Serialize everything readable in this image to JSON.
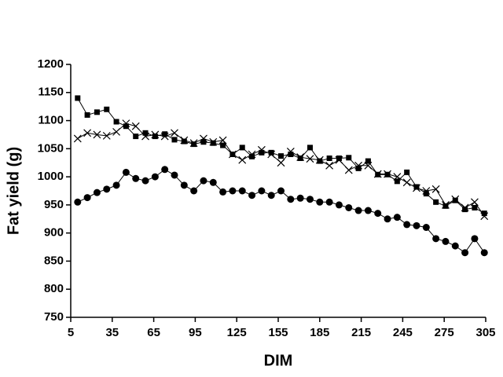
{
  "chart_data": {
    "type": "line",
    "x": [
      10,
      17,
      24,
      31,
      38,
      45,
      52,
      59,
      66,
      73,
      80,
      87,
      94,
      101,
      108,
      115,
      122,
      129,
      136,
      143,
      150,
      157,
      164,
      171,
      178,
      185,
      192,
      199,
      206,
      213,
      220,
      227,
      234,
      241,
      248,
      255,
      262,
      269,
      276,
      283,
      290,
      297,
      304
    ],
    "series": [
      {
        "marker": "square",
        "color": "#000000",
        "values": [
          1140,
          1110,
          1115,
          1120,
          1098,
          1090,
          1072,
          1078,
          1072,
          1076,
          1066,
          1063,
          1058,
          1062,
          1060,
          1056,
          1040,
          1052,
          1036,
          1043,
          1043,
          1037,
          1040,
          1033,
          1052,
          1028,
          1033,
          1033,
          1034,
          1015,
          1028,
          1004,
          1004,
          992,
          1008,
          982,
          970,
          955,
          948,
          958,
          942,
          945,
          935
        ]
      },
      {
        "marker": "x",
        "color": "#000000",
        "values": [
          1068,
          1078,
          1075,
          1073,
          1080,
          1095,
          1090,
          1072,
          1075,
          1072,
          1078,
          1065,
          1060,
          1068,
          1062,
          1065,
          1040,
          1030,
          1040,
          1048,
          1040,
          1025,
          1045,
          1035,
          1032,
          1030,
          1020,
          1030,
          1012,
          1020,
          1020,
          1005,
          1005,
          1000,
          990,
          980,
          975,
          978,
          950,
          960,
          945,
          955,
          930
        ]
      },
      {
        "marker": "circle",
        "color": "#000000",
        "values": [
          955,
          963,
          972,
          978,
          985,
          1008,
          997,
          993,
          1000,
          1013,
          1003,
          985,
          975,
          993,
          990,
          973,
          975,
          975,
          967,
          975,
          967,
          975,
          960,
          962,
          960,
          955,
          955,
          950,
          945,
          940,
          940,
          935,
          925,
          928,
          915,
          913,
          910,
          890,
          885,
          877,
          865,
          890,
          865
        ]
      }
    ],
    "xlabel": "DIM",
    "ylabel": "Fat yield (g)",
    "xlim": [
      5,
      305
    ],
    "xticks": [
      5,
      35,
      65,
      95,
      125,
      155,
      185,
      215,
      245,
      275,
      305
    ],
    "ylim": [
      750,
      1200
    ],
    "yticks": [
      750,
      800,
      850,
      900,
      950,
      1000,
      1050,
      1100,
      1150,
      1200
    ],
    "grid": false
  }
}
